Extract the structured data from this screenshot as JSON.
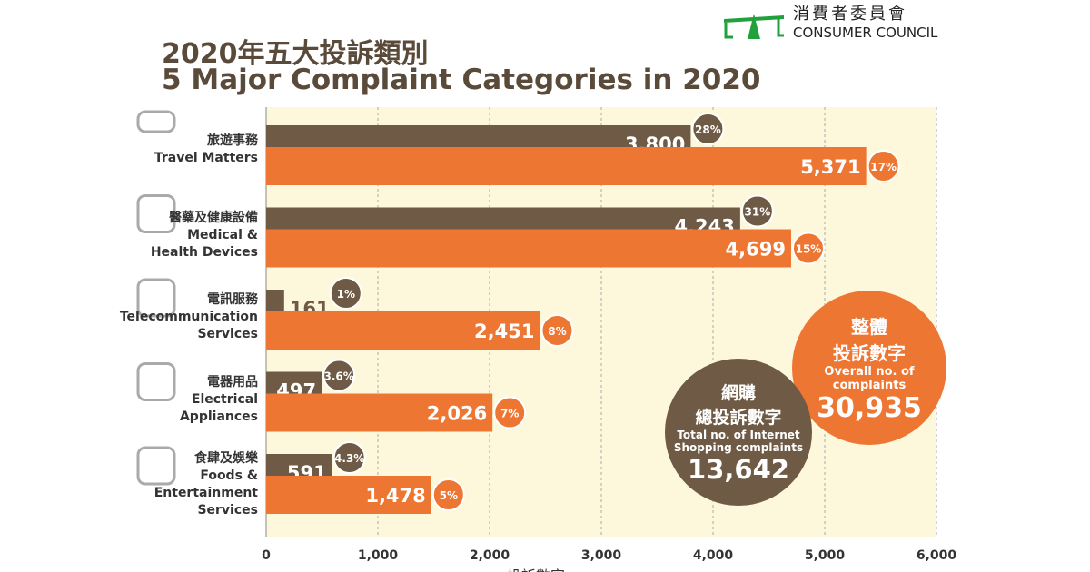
{
  "title_zh": "2020年五大投訴類別",
  "title_en": "5 Major Complaint Categories in 2020",
  "logo": {
    "zh": "消費者委員會",
    "en": "CONSUMER COUNCIL",
    "color": "#22a03c"
  },
  "colors": {
    "internet": "#6e5a45",
    "overall": "#ee7633",
    "background": "#fdf8dc"
  },
  "chart_data": {
    "type": "bar",
    "orientation": "horizontal",
    "categories": [
      {
        "zh": "旅遊事務",
        "en": [
          "Travel Matters"
        ],
        "icon": "airplane-icon"
      },
      {
        "zh": "醫藥及健康設備",
        "en": [
          "Medical &",
          "Health Devices"
        ],
        "icon": "face-mask-icon"
      },
      {
        "zh": "電訊服務",
        "en": [
          "Telecommunication",
          "Services"
        ],
        "icon": "phone-tablet-icon"
      },
      {
        "zh": "電器用品",
        "en": [
          "Electrical",
          "Appliances"
        ],
        "icon": "fan-washer-icon"
      },
      {
        "zh": "食肆及娛樂",
        "en": [
          "Foods &",
          "Entertainment",
          "Services"
        ],
        "icon": "masks-cutlery-icon"
      }
    ],
    "series": [
      {
        "values": [
          3800,
          4243,
          161,
          497,
          591
        ],
        "labels": [
          "3,800",
          "4,243",
          "161",
          "497",
          "591"
        ],
        "percent": [
          "28%",
          "31%",
          "1%",
          "3.6%",
          "4.3%"
        ]
      },
      {
        "values": [
          5371,
          4699,
          2451,
          2026,
          1478
        ],
        "labels": [
          "5,371",
          "4,699",
          "2,451",
          "2,026",
          "1,478"
        ],
        "percent": [
          "17%",
          "15%",
          "8%",
          "7%",
          "5%"
        ]
      }
    ],
    "xlim": [
      0,
      6000
    ],
    "xticks": [
      "0",
      "1,000",
      "2,000",
      "3,000",
      "4,000",
      "5,000",
      "6,000"
    ],
    "xlabel": "投訴數字",
    "grid": true
  },
  "internet_total": {
    "zh1": "網購",
    "zh2": "總投訴數字",
    "en1": "Total no. of Internet",
    "en2": "Shopping complaints",
    "value": "13,642"
  },
  "overall_total": {
    "zh1": "整體",
    "zh2": "投訴數字",
    "en1": "Overall no. of",
    "en2": "complaints",
    "value": "30,935"
  }
}
